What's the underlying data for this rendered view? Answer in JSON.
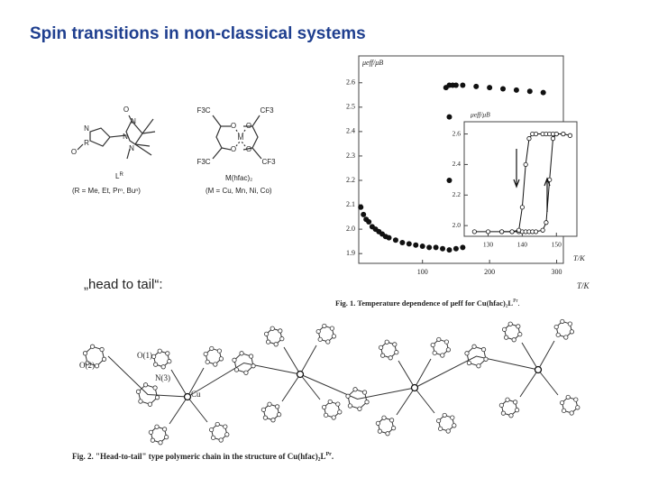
{
  "title": "Spin transitions in non-classical systems",
  "structures": [
    {
      "atoms": [
        "O",
        "N",
        "N",
        "N",
        "N",
        "R",
        "O"
      ],
      "label": "L",
      "label_sup": "R",
      "note": "(R = Me, Et, Prⁿ, Buⁿ)"
    },
    {
      "atoms": [
        "F3C",
        "CF3",
        "O",
        "O",
        "M",
        "O",
        "O",
        "F3C",
        "CF3"
      ],
      "label": "M(hfac)₂",
      "note": "(M = Cu, Mn, Ni, Co)"
    }
  ],
  "head_to_tail": "„head to tail“:",
  "figure1_caption": {
    "text": "Fig. 1. Temperature dependence of μeff for Cu(hfac)₂L",
    "sup": "Pr",
    "end": "."
  },
  "figure2": {
    "atom_labels": [
      "O(1)",
      "O(2)",
      "N(3)",
      "Cu"
    ],
    "caption": "Fig. 2. \"Head-to-tail\" type polymeric chain in the structure of Cu(hfac)₂L",
    "sup": "Pr",
    "end": "."
  },
  "chart_data": [
    {
      "type": "scatter",
      "x_label": "T/K",
      "y_label": "μeff/μB",
      "xlim": [
        5,
        310
      ],
      "ylim": [
        1.86,
        2.71
      ],
      "xticks": [
        100,
        200,
        300
      ],
      "yticks": [
        1.9,
        {
          "value": 2,
          "label": "2.0"
        },
        2.1,
        2.2,
        2.3,
        2.4,
        2.5,
        2.6
      ],
      "series": [
        {
          "color": "#111111",
          "x": [
            8,
            12,
            16,
            20,
            25,
            30,
            35,
            40,
            45,
            50,
            60,
            70,
            80,
            90,
            100,
            110,
            120,
            130,
            140,
            150,
            160,
            140,
            140,
            135,
            140,
            145,
            150,
            160,
            180,
            200,
            220,
            240,
            260,
            280
          ],
          "values": [
            2.09,
            2.06,
            2.04,
            2.03,
            2.01,
            2.0,
            1.99,
            1.98,
            1.97,
            1.965,
            1.955,
            1.945,
            1.94,
            1.935,
            1.93,
            1.925,
            1.925,
            1.92,
            1.915,
            1.92,
            1.925,
            2.46,
            2.2,
            2.58,
            2.59,
            2.59,
            2.59,
            2.59,
            2.585,
            2.58,
            2.575,
            2.57,
            2.565,
            2.56
          ]
        }
      ]
    },
    {
      "type": "line",
      "x_label": "T/K",
      "y_label": "μeff/μB",
      "xlim": [
        123,
        156
      ],
      "ylim": [
        1.93,
        2.68
      ],
      "xticks": [
        130,
        140,
        150
      ],
      "yticks": [
        {
          "value": 2,
          "label": "2.0"
        },
        2.2,
        2.4,
        2.6
      ],
      "x": [
        126,
        130,
        134,
        137,
        139,
        140,
        141,
        142,
        143,
        144,
        146,
        147,
        148,
        149,
        150,
        152,
        154
      ],
      "series": [
        {
          "color": "#111111",
          "values": [
            1.96,
            1.96,
            1.96,
            1.96,
            1.96,
            1.96,
            1.96,
            1.96,
            1.96,
            1.96,
            1.97,
            2.02,
            2.3,
            2.57,
            2.6,
            2.6,
            2.59
          ]
        },
        {
          "color": "#111111",
          "values": [
            null,
            null,
            1.96,
            1.96,
            1.97,
            2.12,
            2.4,
            2.57,
            2.6,
            2.6,
            2.6,
            2.6,
            2.6,
            2.6,
            2.6,
            2.6,
            null
          ]
        }
      ]
    }
  ]
}
